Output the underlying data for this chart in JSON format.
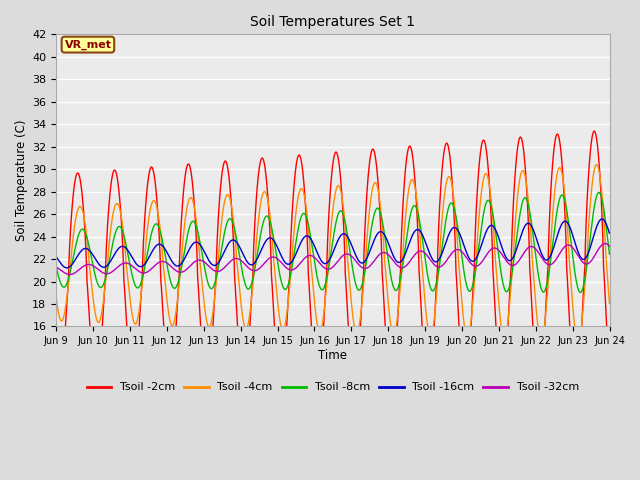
{
  "title": "Soil Temperatures Set 1",
  "xlabel": "Time",
  "ylabel": "Soil Temperature (C)",
  "ylim": [
    16,
    42
  ],
  "yticks": [
    16,
    18,
    20,
    22,
    24,
    26,
    28,
    30,
    32,
    34,
    36,
    38,
    40,
    42
  ],
  "annotation_text": "VR_met",
  "annotation_color": "#8B0000",
  "annotation_bg": "#FFFF99",
  "annotation_border": "#8B4513",
  "colors": {
    "Tsoil -2cm": "#FF0000",
    "Tsoil -4cm": "#FF8C00",
    "Tsoil -8cm": "#00BB00",
    "Tsoil -16cm": "#0000CC",
    "Tsoil -32cm": "#BB00BB"
  },
  "x_tick_labels": [
    "Jun 9",
    "Jun 10",
    "Jun 11",
    "Jun 12",
    "Jun 13",
    "Jun 14",
    "Jun 15",
    "Jun 16",
    "Jun 17",
    "Jun 18",
    "Jun 19",
    "Jun 20",
    "Jun 21",
    "Jun 22",
    "Jun 23",
    "Jun 24"
  ],
  "bg_color": "#DCDCDC",
  "plot_bg": "#EBEBEB",
  "n_days": 15,
  "pts_per_day": 288,
  "line_width": 1.0
}
